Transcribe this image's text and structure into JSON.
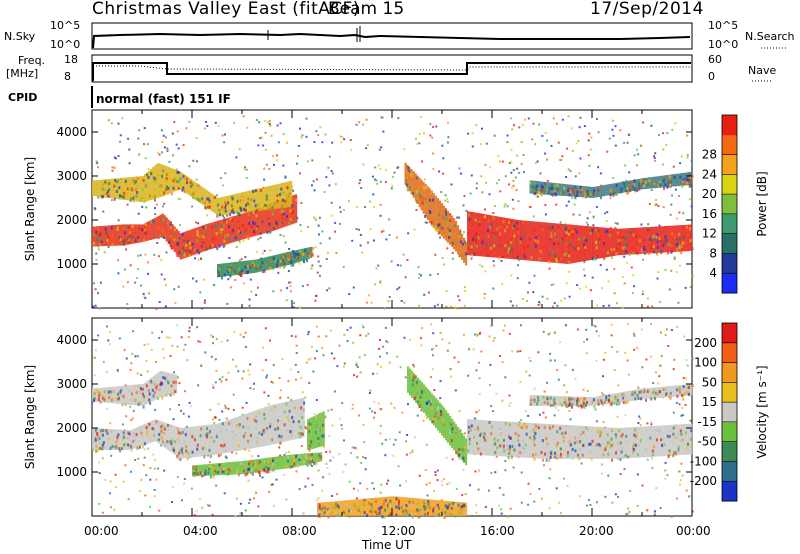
{
  "header": {
    "title": "Christmas Valley East (fitACF)",
    "beam": "Beam 15",
    "date": "17/Sep/2014"
  },
  "top_panels": {
    "nsky_label": "N.Sky",
    "nsearch_label": "N.Search",
    "nsky_ticks": [
      "10^5",
      "10^0"
    ],
    "nsearch_ticks": [
      "10^5",
      "10^0"
    ],
    "freq_label": "Freq.",
    "freq_unit": "[MHz]",
    "freq_ticks": [
      "18",
      "8"
    ],
    "nave_label": "Nave",
    "nave_ticks": [
      "60",
      "0"
    ],
    "cpid_label": "CPID",
    "cpid_text": "normal (fast) 151 IF"
  },
  "x_axis": {
    "label": "Time UT",
    "ticks": [
      "00:00",
      "04:00",
      "08:00",
      "12:00",
      "16:00",
      "20:00",
      "00:00"
    ]
  },
  "chart_data": [
    {
      "type": "heatmap",
      "name": "power",
      "ylabel": "Slant Range [km]",
      "yticks": [
        1000,
        2000,
        3000,
        4000
      ],
      "ylim": [
        0,
        4500
      ],
      "xlim": [
        0,
        24
      ],
      "colorbar": {
        "label": "Power [dB]",
        "ticks": [
          4,
          8,
          12,
          16,
          20,
          24,
          28
        ],
        "colors": [
          "#1b2df0",
          "#233a9a",
          "#2a6e6a",
          "#3c9a6c",
          "#7fbf3a",
          "#d8d410",
          "#f3a31b",
          "#f46a14",
          "#e72016"
        ]
      },
      "bands": [
        {
          "x": [
            0,
            1.2,
            2,
            2.8,
            3.5,
            4.5,
            6,
            7.2,
            8.2
          ],
          "lo": [
            1400,
            1420,
            1500,
            1620,
            1100,
            1300,
            1560,
            1750,
            1950
          ],
          "hi": [
            1850,
            1900,
            1900,
            2150,
            1700,
            1900,
            2150,
            2400,
            2600
          ],
          "c": "#e83018"
        },
        {
          "x": [
            0,
            2,
            2.6,
            3.5,
            5,
            6.5,
            8
          ],
          "lo": [
            2550,
            2400,
            2500,
            2700,
            2100,
            2200,
            2300
          ],
          "hi": [
            2900,
            3000,
            3300,
            3100,
            2500,
            2700,
            2900
          ],
          "c": "#d9b51c"
        },
        {
          "x": [
            5,
            6.5,
            8,
            8.8
          ],
          "lo": [
            700,
            800,
            1000,
            1150
          ],
          "hi": [
            1000,
            1100,
            1300,
            1400
          ],
          "c": "#2e8a5a"
        },
        {
          "x": [
            12.5,
            13.5,
            14.5,
            15
          ],
          "lo": [
            2800,
            1900,
            1300,
            900
          ],
          "hi": [
            3300,
            2700,
            2000,
            1400
          ],
          "c": "#e06a18"
        },
        {
          "x": [
            15,
            17,
            19,
            21,
            24
          ],
          "lo": [
            1200,
            1100,
            1000,
            1200,
            1300
          ],
          "hi": [
            2200,
            2000,
            1900,
            1800,
            1900
          ],
          "c": "#e72016"
        },
        {
          "x": [
            17.5,
            20,
            22,
            24
          ],
          "lo": [
            2600,
            2500,
            2700,
            2800
          ],
          "hi": [
            2900,
            2750,
            2950,
            3100
          ],
          "c": "#3f7a80"
        }
      ]
    },
    {
      "type": "heatmap",
      "name": "velocity",
      "ylabel": "Slant Range [km]",
      "yticks": [
        1000,
        2000,
        3000,
        4000
      ],
      "ylim": [
        0,
        4500
      ],
      "xlim": [
        0,
        24
      ],
      "colorbar": {
        "label": "Velocity [m s⁻¹]",
        "ticks": [
          200,
          100,
          50,
          15,
          -15,
          -50,
          -100,
          -200
        ],
        "colors": [
          "#1d33c8",
          "#2e6e8c",
          "#3d8a58",
          "#6cc03c",
          "#c8c8c4",
          "#e9c020",
          "#f09820",
          "#f26018",
          "#e01a16"
        ]
      },
      "bands": [
        {
          "x": [
            0,
            1.5,
            2.5,
            3.5,
            5,
            7,
            8.5
          ],
          "lo": [
            1500,
            1500,
            1700,
            1300,
            1400,
            1600,
            1800
          ],
          "hi": [
            2000,
            1950,
            2200,
            2000,
            2100,
            2500,
            2700
          ],
          "c": "#c8c8c4"
        },
        {
          "x": [
            0,
            2,
            2.7,
            3.4
          ],
          "lo": [
            2600,
            2500,
            2700,
            2800
          ],
          "hi": [
            2900,
            3000,
            3300,
            3200
          ],
          "c": "#c8c8c4"
        },
        {
          "x": [
            4,
            6,
            8,
            9.2
          ],
          "lo": [
            900,
            950,
            1100,
            1250
          ],
          "hi": [
            1150,
            1250,
            1400,
            1450
          ],
          "c": "#6cc03c"
        },
        {
          "x": [
            8.6,
            9.3
          ],
          "lo": [
            1500,
            1600
          ],
          "hi": [
            2200,
            2400
          ],
          "c": "#6cc03c"
        },
        {
          "x": [
            12.6,
            14,
            15
          ],
          "lo": [
            2800,
            1800,
            1100
          ],
          "hi": [
            3400,
            2500,
            1700
          ],
          "c": "#6cc03c"
        },
        {
          "x": [
            15,
            18,
            21,
            24
          ],
          "lo": [
            1400,
            1300,
            1300,
            1400
          ],
          "hi": [
            2200,
            2100,
            2000,
            2100
          ],
          "c": "#c8c8c4"
        },
        {
          "x": [
            17.5,
            20,
            22,
            24
          ],
          "lo": [
            2500,
            2500,
            2650,
            2750
          ],
          "hi": [
            2750,
            2700,
            2900,
            3000
          ],
          "c": "#c8c8c4"
        },
        {
          "x": [
            9,
            12,
            15
          ],
          "lo": [
            0,
            0,
            0
          ],
          "hi": [
            300,
            450,
            300
          ],
          "c": "#f0a020"
        }
      ]
    }
  ]
}
